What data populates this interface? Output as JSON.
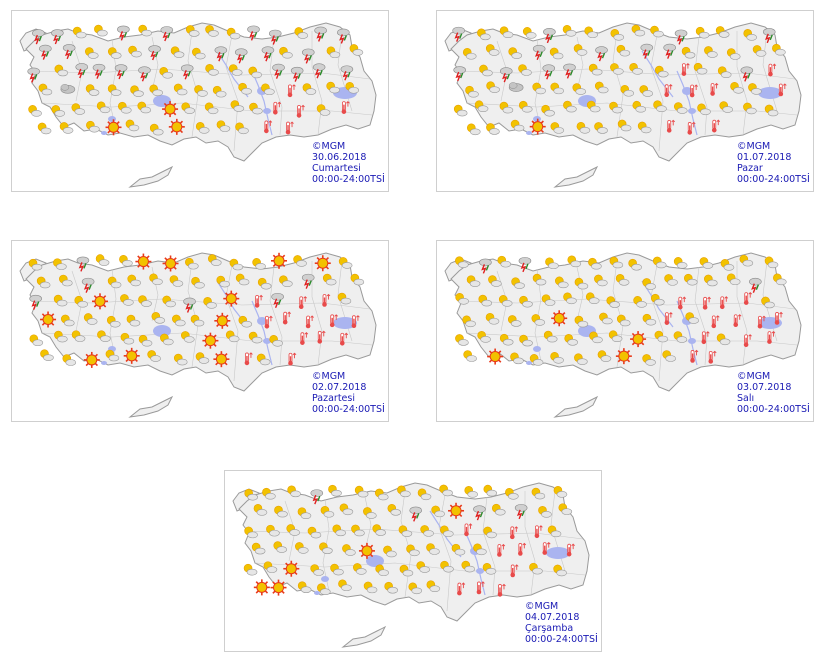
{
  "maps": [
    {
      "credit": "©MGM",
      "date": "30.06.2018",
      "weekday": "Cumartesi",
      "period": "00:00-24:00TSİ",
      "pattern": {
        "storm": 0.55,
        "sun": 0.12,
        "hot": 0.14,
        "cloud": 0.12
      }
    },
    {
      "credit": "©MGM",
      "date": "01.07.2018",
      "weekday": "Pazar",
      "period": "00:00-24:00TSİ",
      "pattern": {
        "storm": 0.35,
        "sun": 0.12,
        "hot": 0.3,
        "cloud": 0.05
      }
    },
    {
      "credit": "©MGM",
      "date": "02.07.2018",
      "weekday": "Pazartesi",
      "period": "00:00-24:00TSİ",
      "pattern": {
        "storm": 0.12,
        "sun": 0.2,
        "hot": 0.35,
        "cloud": 0.0
      }
    },
    {
      "credit": "©MGM",
      "date": "03.07.2018",
      "weekday": "Salı",
      "period": "00:00-24:00TSİ",
      "pattern": {
        "storm": 0.12,
        "sun": 0.1,
        "hot": 0.38,
        "cloud": 0.0
      }
    },
    {
      "credit": "©MGM",
      "date": "04.07.2018",
      "weekday": "Çarşamba",
      "period": "00:00-24:00TSİ",
      "pattern": {
        "storm": 0.1,
        "sun": 0.12,
        "hot": 0.4,
        "cloud": 0.0
      }
    }
  ],
  "colors": {
    "land": "#efefef",
    "border": "#9a9a9a",
    "lake": "#aab4f0",
    "sun": "#f2c200",
    "sun_ring": "#e83a1a",
    "cloud": "#c4c4c4",
    "rain": "#2a8a2a",
    "bolt": "#e02020",
    "thermo": "#e84a4a"
  },
  "icons": [
    "partly-cloudy-icon",
    "sunny-icon",
    "thunderstorm-icon",
    "hot-thermometer-icon",
    "cloudy-icon"
  ]
}
